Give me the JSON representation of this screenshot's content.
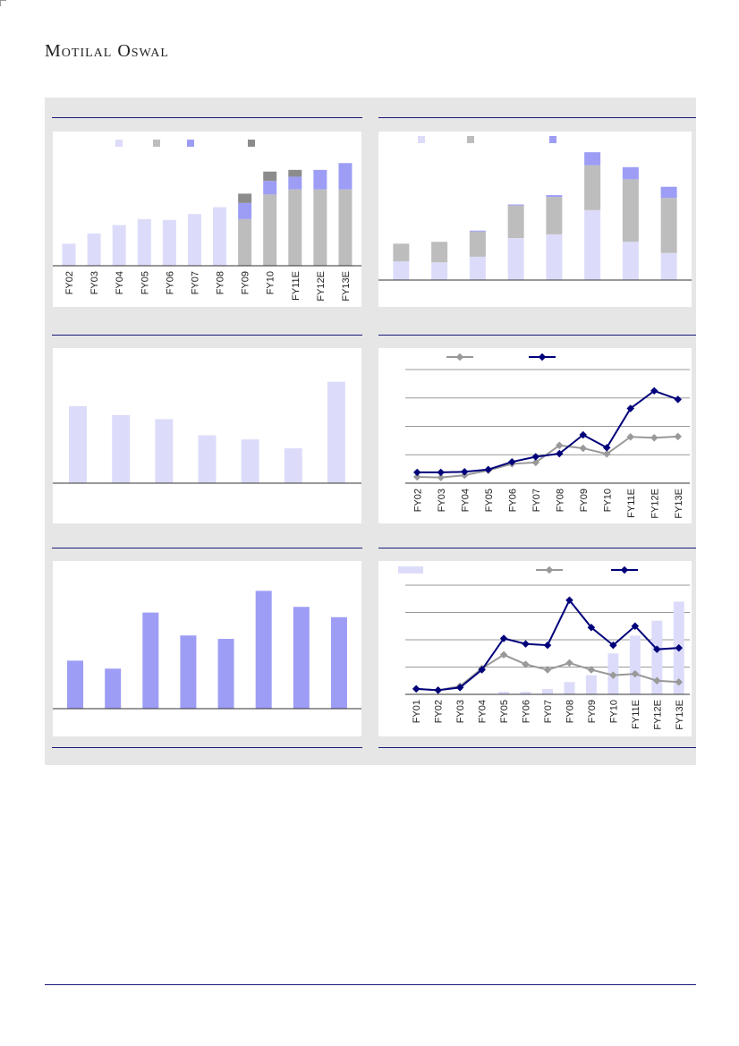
{
  "brand": {
    "name": "Motilal Oswal"
  },
  "colors": {
    "lavender": "#dcdcfa",
    "gray": "#bdbdbd",
    "purple": "#9d9df5",
    "darkgray": "#8c8c8c",
    "navy": "#00007a",
    "line_gray": "#999999",
    "rule": "#1a1a7a"
  },
  "chart_data": [
    {
      "id": "c1",
      "type": "bar",
      "categories": [
        "FY02",
        "FY03",
        "FY04",
        "FY05",
        "FY06",
        "FY07",
        "FY08",
        "FY09",
        "FY10",
        "FY11E",
        "FY12E",
        "FY13E"
      ],
      "series": [
        {
          "color": "#dcdcfa",
          "values": [
            26,
            38,
            48,
            55,
            54,
            61,
            69,
            0,
            0,
            0,
            0,
            0
          ]
        },
        {
          "color": "#bdbdbd",
          "values": [
            0,
            0,
            0,
            0,
            0,
            0,
            0,
            55,
            84,
            90,
            90,
            90
          ]
        },
        {
          "color": "#9d9df5",
          "values": [
            0,
            0,
            0,
            0,
            0,
            0,
            0,
            19,
            16,
            15,
            23,
            31
          ]
        },
        {
          "color": "#8c8c8c",
          "values": [
            0,
            0,
            0,
            0,
            0,
            0,
            0,
            11,
            11,
            8,
            0,
            0
          ]
        }
      ],
      "ylim": [
        0,
        135
      ],
      "grid": false,
      "legend": "top"
    },
    {
      "id": "c2",
      "type": "bar",
      "categories": [
        "",
        "",
        "",
        "",
        "",
        "",
        "",
        ""
      ],
      "series": [
        {
          "color": "#dcdcfa",
          "values": [
            20,
            19,
            25,
            45,
            49,
            75,
            41,
            29
          ]
        },
        {
          "color": "#bdbdbd",
          "values": [
            19,
            22,
            27,
            35,
            40,
            48,
            67,
            59
          ]
        },
        {
          "color": "#9d9df5",
          "values": [
            0,
            0,
            1,
            1,
            2,
            14,
            13,
            12
          ]
        }
      ],
      "ylim": [
        0,
        140
      ],
      "grid": false,
      "legend": "top"
    },
    {
      "id": "c3",
      "type": "bar",
      "categories": [
        "",
        "",
        "",
        "",
        "",
        "",
        ""
      ],
      "series": [
        {
          "color": "#dcdcfa",
          "values": [
            95,
            84,
            79,
            59,
            54,
            43,
            125
          ]
        }
      ],
      "ylim": [
        0,
        150
      ],
      "grid": false
    },
    {
      "id": "c4",
      "type": "line",
      "categories": [
        "FY02",
        "FY03",
        "FY04",
        "FY05",
        "FY06",
        "FY07",
        "FY08",
        "FY09",
        "FY10",
        "FY11E",
        "FY12E",
        "FY13E"
      ],
      "series": [
        {
          "color": "#999999",
          "values": [
            2.2,
            2.0,
            2.8,
            4.5,
            6.8,
            7.3,
            13.3,
            12.3,
            10.3,
            16.3,
            16.0,
            16.4
          ]
        },
        {
          "color": "#00007a",
          "values": [
            3.8,
            3.8,
            4.0,
            4.8,
            7.5,
            9.3,
            10.4,
            17.0,
            12.5,
            26.3,
            32.5,
            29.5
          ]
        }
      ],
      "ylim": [
        0,
        40
      ],
      "grid": true,
      "legend": "top"
    },
    {
      "id": "c5",
      "type": "bar",
      "categories": [
        "",
        "",
        "",
        "",
        "",
        "",
        "",
        ""
      ],
      "series": [
        {
          "color": "#9d9df5",
          "values": [
            42,
            35,
            84,
            64,
            61,
            103,
            89,
            80
          ]
        }
      ],
      "ylim": [
        0,
        115
      ],
      "grid": false
    },
    {
      "id": "c6",
      "type": "line",
      "categories": [
        "FY01",
        "FY02",
        "FY03",
        "FY04",
        "FY05",
        "FY06",
        "FY07",
        "FY08",
        "FY09",
        "FY10",
        "FY11E",
        "FY12E",
        "FY13E"
      ],
      "bars": {
        "color": "#dcdcfa",
        "values": [
          0,
          0,
          0,
          0,
          2,
          2,
          4,
          9,
          14,
          30,
          43,
          54,
          68
        ]
      },
      "series": [
        {
          "color": "#999999",
          "values": [
            4,
            3,
            6,
            19,
            29,
            22,
            18,
            23,
            18,
            14,
            15,
            10,
            9
          ]
        },
        {
          "color": "#00007a",
          "values": [
            4,
            3,
            5,
            18,
            41,
            37,
            36,
            69,
            49,
            36,
            50,
            33,
            34
          ]
        }
      ],
      "ylim": [
        0,
        80
      ],
      "grid": true,
      "legend": "top"
    }
  ]
}
